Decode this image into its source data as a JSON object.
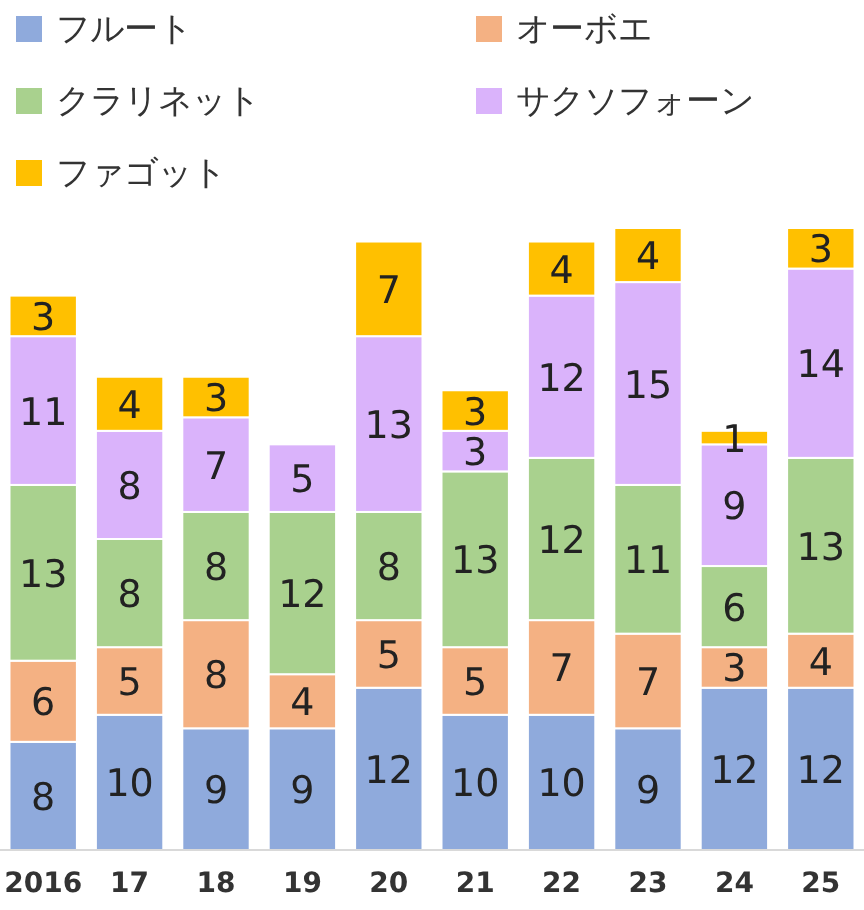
{
  "chart_data": {
    "type": "bar",
    "stacked": true,
    "data_labels": true,
    "legend": "top",
    "categories": [
      "2016",
      "17",
      "18",
      "19",
      "20",
      "21",
      "22",
      "23",
      "24",
      "25"
    ],
    "series": [
      {
        "name": "フルート",
        "color": "#8faadc",
        "values": [
          8,
          10,
          9,
          9,
          12,
          10,
          10,
          9,
          12,
          12
        ]
      },
      {
        "name": "オーボエ",
        "color": "#f4b183",
        "values": [
          6,
          5,
          8,
          4,
          5,
          5,
          7,
          7,
          3,
          4
        ]
      },
      {
        "name": "クラリネット",
        "color": "#a9d18e",
        "values": [
          13,
          8,
          8,
          12,
          8,
          13,
          12,
          11,
          6,
          13
        ]
      },
      {
        "name": "サクソフォーン",
        "color": "#dab3fb",
        "values": [
          11,
          8,
          7,
          5,
          13,
          3,
          12,
          15,
          9,
          14
        ]
      },
      {
        "name": "ファゴット",
        "color": "#ffc000",
        "values": [
          3,
          4,
          3,
          null,
          7,
          3,
          4,
          4,
          1,
          3
        ]
      }
    ]
  }
}
